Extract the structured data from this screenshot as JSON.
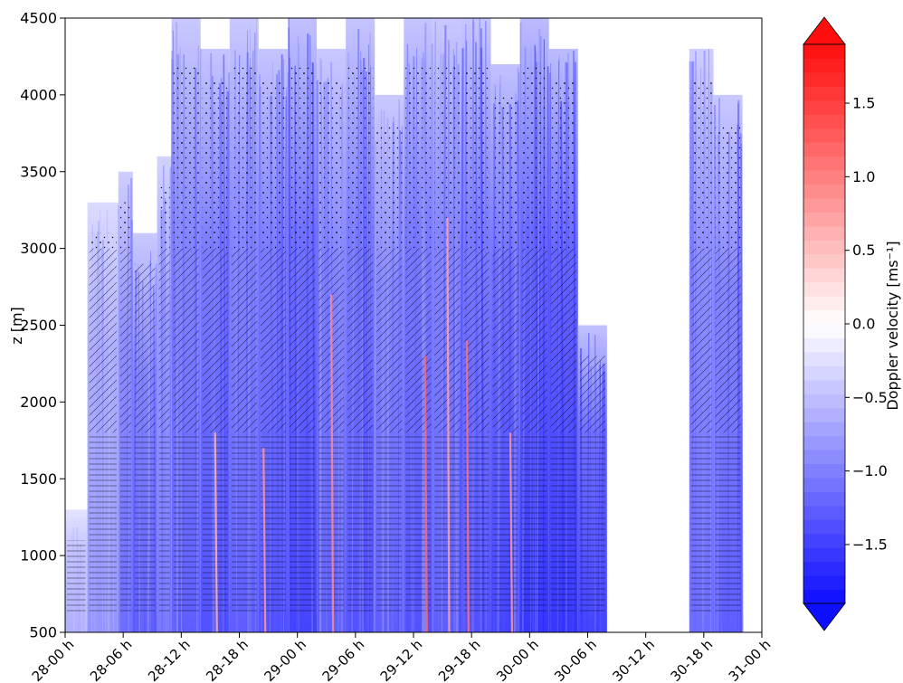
{
  "chart_data": {
    "type": "heatmap",
    "title": "",
    "xlabel": "",
    "ylabel": "z [m]",
    "x_tick_labels": [
      "28-00 h",
      "28-06 h",
      "28-12 h",
      "28-18 h",
      "29-00 h",
      "29-06 h",
      "29-12 h",
      "29-18 h",
      "30-00 h",
      "30-06 h",
      "30-12 h",
      "30-18 h",
      "31-00 h"
    ],
    "x_tick_hours": [
      0,
      6,
      12,
      18,
      24,
      30,
      36,
      42,
      48,
      54,
      60,
      66,
      72
    ],
    "xlim_hours": [
      0,
      72
    ],
    "y_ticks": [
      500,
      1000,
      1500,
      2000,
      2500,
      3000,
      3500,
      4000,
      4500
    ],
    "ylim": [
      500,
      4500
    ],
    "colorbar": {
      "label": "Doppler velocity [ms⁻¹]",
      "ticks": [
        -1.5,
        -1.0,
        -0.5,
        0.0,
        0.5,
        1.0,
        1.5
      ],
      "tick_labels": [
        "−1.5",
        "−1.0",
        "−0.5",
        "0.0",
        "0.5",
        "1.0",
        "1.5"
      ],
      "vmin": -1.9,
      "vmax": 1.9,
      "extend": "both",
      "colormap": "bwr",
      "levels": 40
    },
    "precipitation_columns": [
      {
        "t_start": 0.0,
        "t_end": 2.3,
        "z_top": 1300,
        "velocity": -0.6
      },
      {
        "t_start": 2.3,
        "t_end": 5.5,
        "z_top": 3300,
        "velocity": -0.8
      },
      {
        "t_start": 5.5,
        "t_end": 7.0,
        "z_top": 3500,
        "velocity": -1.1
      },
      {
        "t_start": 7.0,
        "t_end": 9.5,
        "z_top": 3100,
        "velocity": -1.2
      },
      {
        "t_start": 9.5,
        "t_end": 11.0,
        "z_top": 3600,
        "velocity": -1.0
      },
      {
        "t_start": 11.0,
        "t_end": 14.0,
        "z_top": 4500,
        "velocity": -1.2
      },
      {
        "t_start": 14.0,
        "t_end": 17.0,
        "z_top": 4300,
        "velocity": -1.3
      },
      {
        "t_start": 17.0,
        "t_end": 20.0,
        "z_top": 4500,
        "velocity": -1.2
      },
      {
        "t_start": 20.0,
        "t_end": 23.0,
        "z_top": 4300,
        "velocity": -1.3
      },
      {
        "t_start": 23.0,
        "t_end": 26.0,
        "z_top": 4500,
        "velocity": -1.4
      },
      {
        "t_start": 26.0,
        "t_end": 29.0,
        "z_top": 4300,
        "velocity": -1.2
      },
      {
        "t_start": 29.0,
        "t_end": 32.0,
        "z_top": 4500,
        "velocity": -1.3
      },
      {
        "t_start": 32.0,
        "t_end": 35.0,
        "z_top": 4000,
        "velocity": -1.2
      },
      {
        "t_start": 35.0,
        "t_end": 38.0,
        "z_top": 4500,
        "velocity": -1.3
      },
      {
        "t_start": 38.0,
        "t_end": 41.0,
        "z_top": 4500,
        "velocity": -1.2
      },
      {
        "t_start": 41.0,
        "t_end": 44.0,
        "z_top": 4500,
        "velocity": -1.3
      },
      {
        "t_start": 44.0,
        "t_end": 47.0,
        "z_top": 4200,
        "velocity": -1.4
      },
      {
        "t_start": 47.0,
        "t_end": 50.0,
        "z_top": 4500,
        "velocity": -1.5
      },
      {
        "t_start": 50.0,
        "t_end": 53.0,
        "z_top": 4300,
        "velocity": -1.5
      },
      {
        "t_start": 53.0,
        "t_end": 56.0,
        "z_top": 2500,
        "velocity": -1.4
      },
      {
        "t_start": 64.5,
        "t_end": 67.0,
        "z_top": 4300,
        "velocity": -1.1
      },
      {
        "t_start": 67.0,
        "t_end": 70.0,
        "z_top": 4000,
        "velocity": -1.2
      }
    ],
    "updraft_streaks": [
      {
        "t": 15.5,
        "z_top": 1800,
        "velocity": 0.6
      },
      {
        "t": 20.5,
        "z_top": 1700,
        "velocity": 0.8
      },
      {
        "t": 27.5,
        "z_top": 2700,
        "velocity": 0.9
      },
      {
        "t": 37.2,
        "z_top": 2300,
        "velocity": 1.2
      },
      {
        "t": 39.5,
        "z_top": 3200,
        "velocity": 0.7
      },
      {
        "t": 41.5,
        "z_top": 2400,
        "velocity": 1.1
      },
      {
        "t": 46.0,
        "z_top": 1800,
        "velocity": 0.8
      }
    ]
  }
}
